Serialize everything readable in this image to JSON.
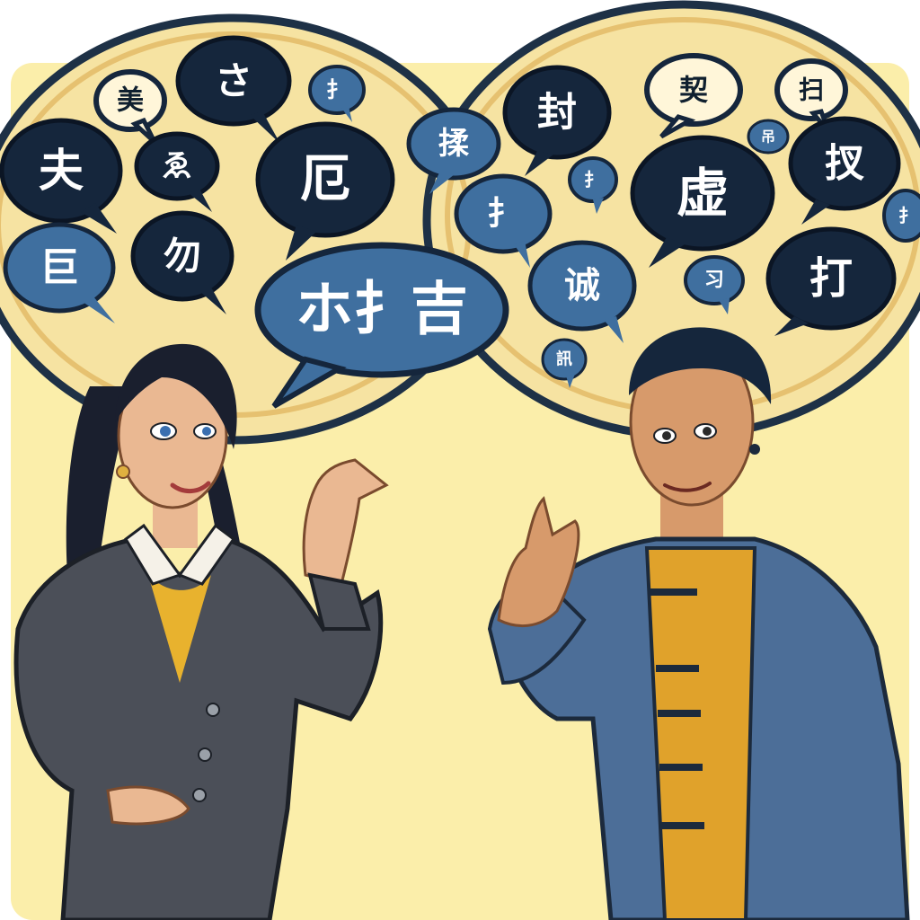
{
  "colors": {
    "background": "#fbeeaa",
    "cloud_fill": "#f6e3a2",
    "cloud_edge": "#1e3146",
    "bubble_dark": "#15263c",
    "bubble_blue": "#3f6f9f",
    "bubble_text_light": "#ffffff",
    "bubble_text_dark": "#10202f",
    "woman_blazer": "#4b4f58",
    "woman_hair": "#1a1f2e",
    "woman_top": "#e8b22e",
    "man_jacket": "#4c6e98",
    "man_shirt": "#e0a22b",
    "skin": "#eab892",
    "man_skin": "#d79a6b"
  },
  "speech_bubbles_left": [
    {
      "text": "美",
      "style": "light"
    },
    {
      "text": "さ",
      "style": "dark"
    },
    {
      "text": "扌",
      "style": "blue"
    },
    {
      "text": "夫",
      "style": "dark"
    },
    {
      "text": "ゑ",
      "style": "dark"
    },
    {
      "text": "厄",
      "style": "dark"
    },
    {
      "text": "巨",
      "style": "blue"
    },
    {
      "text": "勿",
      "style": "dark"
    },
    {
      "text": "ホ扌吉",
      "style": "blue"
    }
  ],
  "speech_bubbles_right": [
    {
      "text": "封",
      "style": "dark"
    },
    {
      "text": "契",
      "style": "light"
    },
    {
      "text": "扫",
      "style": "light"
    },
    {
      "text": "揉",
      "style": "blue"
    },
    {
      "text": "吊",
      "style": "blue"
    },
    {
      "text": "扌",
      "style": "blue"
    },
    {
      "text": "虚",
      "style": "dark"
    },
    {
      "text": "扠",
      "style": "dark"
    },
    {
      "text": "扌",
      "style": "blue"
    },
    {
      "text": "扌",
      "style": "blue"
    },
    {
      "text": "诚",
      "style": "blue"
    },
    {
      "text": "习",
      "style": "blue"
    },
    {
      "text": "打",
      "style": "dark"
    },
    {
      "text": "訊",
      "style": "blue"
    }
  ]
}
